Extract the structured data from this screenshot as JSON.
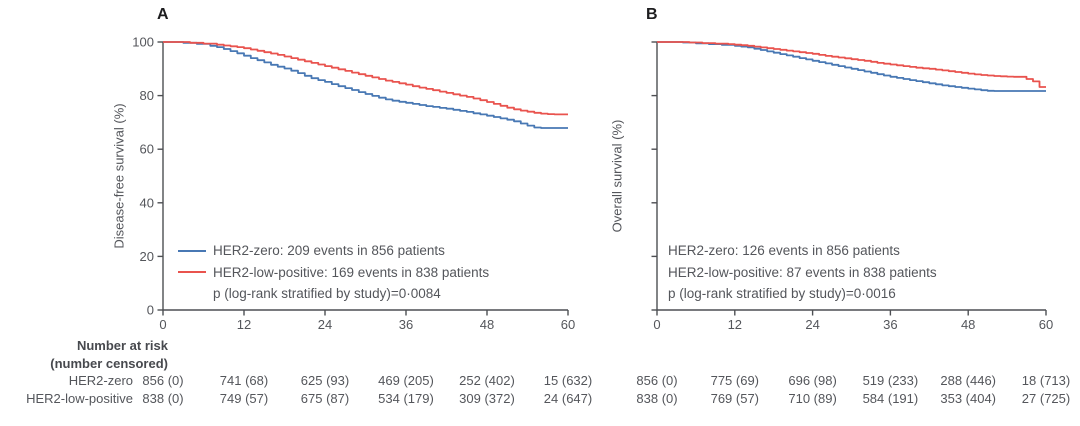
{
  "colors": {
    "blue": "#4878b4",
    "red": "#e9534e",
    "text": "#54565b",
    "axis": "#4d4f53",
    "panel_letter": "#1d1d1f"
  },
  "chart_data": [
    {
      "type": "line",
      "subtype": "kaplan-meier-step",
      "panel_label": "A",
      "ylabel": "Disease-free survival (%)",
      "xlabel": "",
      "xlim": [
        0,
        60
      ],
      "ylim": [
        0,
        100
      ],
      "xticks": [
        0,
        12,
        24,
        36,
        48,
        60
      ],
      "yticks": [
        0,
        20,
        40,
        60,
        80,
        100
      ],
      "ytick_labels_visible": true,
      "grid": false,
      "legend_position": "lower-left-inside",
      "series": [
        {
          "name": "HER2-zero",
          "color": "#4878b4",
          "points": [
            [
              0,
              100
            ],
            [
              3,
              99.7
            ],
            [
              5,
              99.3
            ],
            [
              7,
              98.6
            ],
            [
              8,
              98.1
            ],
            [
              9,
              97.4
            ],
            [
              10,
              96.6
            ],
            [
              11,
              95.8
            ],
            [
              12,
              94.9
            ],
            [
              13,
              94
            ],
            [
              14,
              93.2
            ],
            [
              15,
              92.4
            ],
            [
              16,
              91.5
            ],
            [
              17,
              90.8
            ],
            [
              18,
              90.1
            ],
            [
              19,
              89.3
            ],
            [
              20,
              88.4
            ],
            [
              21,
              87.4
            ],
            [
              22,
              86.5
            ],
            [
              23,
              85.8
            ],
            [
              24,
              85.1
            ],
            [
              25,
              84.3
            ],
            [
              26,
              83.5
            ],
            [
              27,
              82.8
            ],
            [
              28,
              82.1
            ],
            [
              29,
              81.3
            ],
            [
              30,
              80.6
            ],
            [
              31,
              79.9
            ],
            [
              32,
              79.2
            ],
            [
              33,
              78.6
            ],
            [
              34,
              78.1
            ],
            [
              35,
              77.7
            ],
            [
              36,
              77.3
            ],
            [
              37,
              76.9
            ],
            [
              38,
              76.5
            ],
            [
              39,
              76.1
            ],
            [
              40,
              75.8
            ],
            [
              41,
              75.4
            ],
            [
              42,
              75.1
            ],
            [
              43,
              74.7
            ],
            [
              44,
              74.3
            ],
            [
              45,
              73.9
            ],
            [
              46,
              73.4
            ],
            [
              47,
              73
            ],
            [
              48,
              72.5
            ],
            [
              49,
              72
            ],
            [
              50,
              71.5
            ],
            [
              51,
              71
            ],
            [
              52,
              70.4
            ],
            [
              53,
              69.6
            ],
            [
              54,
              68.8
            ],
            [
              55,
              68.1
            ],
            [
              56,
              67.9
            ],
            [
              60,
              67.9
            ]
          ]
        },
        {
          "name": "HER2-low-positive",
          "color": "#e9534e",
          "points": [
            [
              0,
              100
            ],
            [
              4,
              99.7
            ],
            [
              6,
              99.4
            ],
            [
              8,
              99
            ],
            [
              9,
              98.7
            ],
            [
              10,
              98.4
            ],
            [
              11,
              98.1
            ],
            [
              12,
              97.7
            ],
            [
              13,
              97.2
            ],
            [
              14,
              96.7
            ],
            [
              15,
              96.2
            ],
            [
              16,
              95.7
            ],
            [
              17,
              95.2
            ],
            [
              18,
              94.6
            ],
            [
              19,
              94
            ],
            [
              20,
              93.4
            ],
            [
              21,
              92.8
            ],
            [
              22,
              92.2
            ],
            [
              23,
              91.6
            ],
            [
              24,
              91
            ],
            [
              25,
              90.4
            ],
            [
              26,
              89.8
            ],
            [
              27,
              89.2
            ],
            [
              28,
              88.6
            ],
            [
              29,
              88
            ],
            [
              30,
              87.4
            ],
            [
              31,
              86.8
            ],
            [
              32,
              86.2
            ],
            [
              33,
              85.6
            ],
            [
              34,
              85.1
            ],
            [
              35,
              84.6
            ],
            [
              36,
              84.1
            ],
            [
              37,
              83.5
            ],
            [
              38,
              83
            ],
            [
              39,
              82.5
            ],
            [
              40,
              82
            ],
            [
              41,
              81.5
            ],
            [
              42,
              81
            ],
            [
              43,
              80.5
            ],
            [
              44,
              80
            ],
            [
              45,
              79.5
            ],
            [
              46,
              78.9
            ],
            [
              47,
              78.3
            ],
            [
              48,
              77.6
            ],
            [
              49,
              76.9
            ],
            [
              50,
              76.2
            ],
            [
              51,
              75.5
            ],
            [
              52,
              74.9
            ],
            [
              53,
              74.4
            ],
            [
              54,
              74
            ],
            [
              55,
              73.6
            ],
            [
              56,
              73.3
            ],
            [
              57,
              73.1
            ],
            [
              58,
              73
            ],
            [
              60,
              73
            ]
          ]
        }
      ],
      "legend": {
        "show_swatches": true,
        "lines": [
          {
            "text": "HER2-zero: 209 events in 856 patients",
            "color": "#4878b4"
          },
          {
            "text": "HER2-low-positive: 169 events in 838 patients",
            "color": "#e9534e"
          }
        ],
        "p_text": "p (log-rank stratified by study)=0·0084"
      }
    },
    {
      "type": "line",
      "subtype": "kaplan-meier-step",
      "panel_label": "B",
      "ylabel": "Overall survival (%)",
      "xlabel": "",
      "xlim": [
        0,
        60
      ],
      "ylim": [
        0,
        100
      ],
      "xticks": [
        0,
        12,
        24,
        36,
        48,
        60
      ],
      "yticks": [
        0,
        20,
        40,
        60,
        80,
        100
      ],
      "ytick_labels_visible": false,
      "grid": false,
      "legend_position": "lower-left-inside",
      "series": [
        {
          "name": "HER2-zero",
          "color": "#4878b4",
          "points": [
            [
              0,
              100
            ],
            [
              4,
              99.8
            ],
            [
              6,
              99.5
            ],
            [
              8,
              99.2
            ],
            [
              10,
              98.9
            ],
            [
              12,
              98.6
            ],
            [
              13,
              98.3
            ],
            [
              14,
              98
            ],
            [
              15,
              97.5
            ],
            [
              16,
              97
            ],
            [
              17,
              96.5
            ],
            [
              18,
              96
            ],
            [
              19,
              95.5
            ],
            [
              20,
              95
            ],
            [
              21,
              94.5
            ],
            [
              22,
              94
            ],
            [
              23,
              93.5
            ],
            [
              24,
              93
            ],
            [
              25,
              92.5
            ],
            [
              26,
              92
            ],
            [
              27,
              91.5
            ],
            [
              28,
              91
            ],
            [
              29,
              90.5
            ],
            [
              30,
              90
            ],
            [
              31,
              89.5
            ],
            [
              32,
              89
            ],
            [
              33,
              88.5
            ],
            [
              34,
              88
            ],
            [
              35,
              87.5
            ],
            [
              36,
              87
            ],
            [
              37,
              86.6
            ],
            [
              38,
              86.2
            ],
            [
              39,
              85.8
            ],
            [
              40,
              85.4
            ],
            [
              41,
              85
            ],
            [
              42,
              84.6
            ],
            [
              43,
              84.2
            ],
            [
              44,
              83.8
            ],
            [
              45,
              83.5
            ],
            [
              46,
              83.2
            ],
            [
              47,
              82.9
            ],
            [
              48,
              82.6
            ],
            [
              49,
              82.3
            ],
            [
              50,
              82
            ],
            [
              51,
              81.8
            ],
            [
              52,
              81.7
            ],
            [
              60,
              81.7
            ]
          ]
        },
        {
          "name": "HER2-low-positive",
          "color": "#e9534e",
          "points": [
            [
              0,
              100
            ],
            [
              5,
              99.8
            ],
            [
              7,
              99.6
            ],
            [
              9,
              99.4
            ],
            [
              11,
              99.2
            ],
            [
              12,
              99
            ],
            [
              13,
              98.8
            ],
            [
              14,
              98.6
            ],
            [
              15,
              98.3
            ],
            [
              16,
              98
            ],
            [
              17,
              97.7
            ],
            [
              18,
              97.4
            ],
            [
              19,
              97.1
            ],
            [
              20,
              96.8
            ],
            [
              21,
              96.5
            ],
            [
              22,
              96.2
            ],
            [
              23,
              95.9
            ],
            [
              24,
              95.6
            ],
            [
              25,
              95.2
            ],
            [
              26,
              94.8
            ],
            [
              27,
              94.5
            ],
            [
              28,
              94.2
            ],
            [
              29,
              93.9
            ],
            [
              30,
              93.6
            ],
            [
              31,
              93.3
            ],
            [
              32,
              93
            ],
            [
              33,
              92.6
            ],
            [
              34,
              92.2
            ],
            [
              35,
              91.9
            ],
            [
              36,
              91.6
            ],
            [
              37,
              91.3
            ],
            [
              38,
              91
            ],
            [
              39,
              90.7
            ],
            [
              40,
              90.4
            ],
            [
              41,
              90.2
            ],
            [
              42,
              90
            ],
            [
              43,
              89.7
            ],
            [
              44,
              89.4
            ],
            [
              45,
              89.1
            ],
            [
              46,
              88.8
            ],
            [
              47,
              88.5
            ],
            [
              48,
              88.2
            ],
            [
              49,
              87.9
            ],
            [
              50,
              87.7
            ],
            [
              51,
              87.5
            ],
            [
              52,
              87.3
            ],
            [
              53,
              87.2
            ],
            [
              54,
              87.1
            ],
            [
              55,
              87
            ],
            [
              57,
              86.2
            ],
            [
              58,
              85.3
            ],
            [
              59,
              83.2
            ],
            [
              60,
              83.2
            ]
          ]
        }
      ],
      "legend": {
        "show_swatches": false,
        "lines": [
          {
            "text": "HER2-zero: 126 events in 856 patients",
            "color": "#4878b4"
          },
          {
            "text": "HER2-low-positive: 87 events in 838 patients",
            "color": "#e9534e"
          }
        ],
        "p_text": "p (log-rank stratified by study)=0·0016"
      }
    }
  ],
  "risk_table": {
    "header_line1": "Number at risk",
    "header_line2": "(number censored)",
    "row_labels": [
      "HER2-zero",
      "HER2-low-positive"
    ],
    "panels": [
      {
        "rows": [
          [
            "856 (0)",
            "741 (68)",
            "625 (93)",
            "469 (205)",
            "252 (402)",
            "15 (632)"
          ],
          [
            "838 (0)",
            "749 (57)",
            "675 (87)",
            "534 (179)",
            "309 (372)",
            "24 (647)"
          ]
        ]
      },
      {
        "rows": [
          [
            "856 (0)",
            "775 (69)",
            "696 (98)",
            "519 (233)",
            "288 (446)",
            "18 (713)"
          ],
          [
            "838 (0)",
            "769 (57)",
            "710 (89)",
            "584 (191)",
            "353 (404)",
            "27 (725)"
          ]
        ]
      }
    ]
  }
}
